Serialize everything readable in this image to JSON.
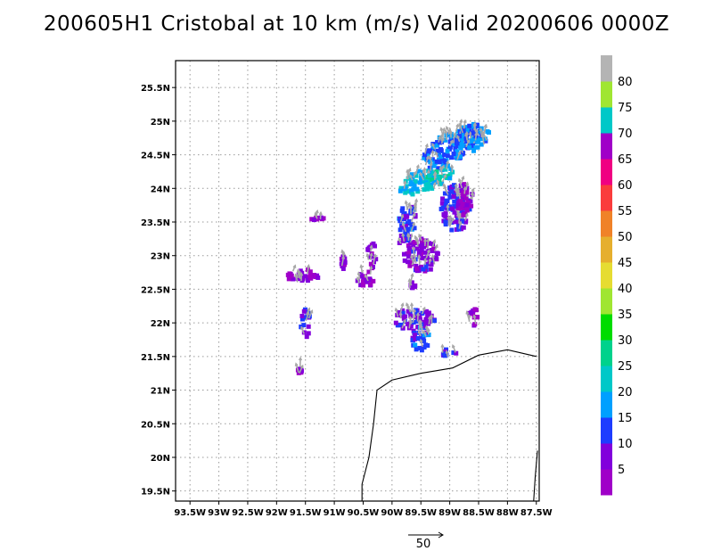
{
  "title": "200605H1 Cristobal at 10 km (m/s) Valid 20200606 0000Z",
  "chart_data": {
    "type": "heatmap",
    "title": "200605H1 Cristobal at 10 km (m/s) Valid 20200606 0000Z",
    "units": "m/s",
    "xlim": [
      -93.75,
      -87.45
    ],
    "ylim": [
      19.35,
      25.9
    ],
    "x_ticks": [
      -93.5,
      -93,
      -92.5,
      -92,
      -91.5,
      -91,
      -90.5,
      -90,
      -89.5,
      -89,
      -88.5,
      -88,
      -87.5
    ],
    "x_tick_labels": [
      "93.5W",
      "93W",
      "92.5W",
      "92W",
      "91.5W",
      "91W",
      "90.5W",
      "90W",
      "89.5W",
      "89W",
      "88.5W",
      "88W",
      "87.5W"
    ],
    "y_ticks": [
      19.5,
      20,
      20.5,
      21,
      21.5,
      22,
      22.5,
      23,
      23.5,
      24,
      24.5,
      25,
      25.5
    ],
    "y_tick_labels": [
      "19.5N",
      "20N",
      "20.5N",
      "21N",
      "21.5N",
      "22N",
      "22.5N",
      "23N",
      "23.5N",
      "24N",
      "24.5N",
      "25N",
      "25.5N"
    ],
    "grid": true,
    "colorbar": {
      "labels": [
        "5",
        "10",
        "15",
        "20",
        "25",
        "30",
        "35",
        "40",
        "45",
        "50",
        "55",
        "60",
        "65",
        "70",
        "75",
        "80"
      ],
      "colors": [
        "#a000c8",
        "#8200dc",
        "#1e3cff",
        "#00a0ff",
        "#00c8c8",
        "#00d28c",
        "#00dc00",
        "#a0e632",
        "#e6dc32",
        "#e6af2d",
        "#f08228",
        "#fa3c3c",
        "#f00082",
        "#a000c8",
        "#00c8c8",
        "#a0e632",
        "#b4b4b4"
      ]
    },
    "vector_key": {
      "value": "50"
    },
    "wind_regions": [
      {
        "lon": -89.0,
        "lat": 24.6,
        "rx": 0.55,
        "ry": 0.22,
        "speed": 14,
        "rot": -35
      },
      {
        "lon": -88.6,
        "lat": 24.75,
        "rx": 0.3,
        "ry": 0.2,
        "speed": 16,
        "rot": -30
      },
      {
        "lon": -89.55,
        "lat": 24.1,
        "rx": 0.35,
        "ry": 0.15,
        "speed": 20,
        "rot": -30
      },
      {
        "lon": -89.2,
        "lat": 24.15,
        "rx": 0.3,
        "ry": 0.12,
        "speed": 22,
        "rot": -30
      },
      {
        "lon": -88.9,
        "lat": 23.7,
        "rx": 0.25,
        "ry": 0.35,
        "speed": 10,
        "rot": 0
      },
      {
        "lon": -88.75,
        "lat": 23.85,
        "rx": 0.15,
        "ry": 0.25,
        "speed": 5,
        "rot": 0
      },
      {
        "lon": -89.7,
        "lat": 23.55,
        "rx": 0.18,
        "ry": 0.2,
        "speed": 12,
        "rot": 0
      },
      {
        "lon": -89.5,
        "lat": 23.0,
        "rx": 0.3,
        "ry": 0.25,
        "speed": 7,
        "rot": 0
      },
      {
        "lon": -89.8,
        "lat": 23.3,
        "rx": 0.12,
        "ry": 0.15,
        "speed": 10,
        "rot": 0
      },
      {
        "lon": -90.35,
        "lat": 23.0,
        "rx": 0.08,
        "ry": 0.2,
        "speed": 6,
        "rot": 0
      },
      {
        "lon": -90.45,
        "lat": 22.65,
        "rx": 0.15,
        "ry": 0.12,
        "speed": 6,
        "rot": 0
      },
      {
        "lon": -91.55,
        "lat": 22.7,
        "rx": 0.3,
        "ry": 0.1,
        "speed": 6,
        "rot": 0
      },
      {
        "lon": -91.5,
        "lat": 22.0,
        "rx": 0.08,
        "ry": 0.22,
        "speed": 10,
        "rot": 0
      },
      {
        "lon": -89.6,
        "lat": 22.05,
        "rx": 0.35,
        "ry": 0.18,
        "speed": 9,
        "rot": 0
      },
      {
        "lon": -89.5,
        "lat": 21.75,
        "rx": 0.15,
        "ry": 0.2,
        "speed": 12,
        "rot": 0
      },
      {
        "lon": -89.0,
        "lat": 21.55,
        "rx": 0.15,
        "ry": 0.06,
        "speed": 11,
        "rot": 0
      },
      {
        "lon": -88.6,
        "lat": 22.1,
        "rx": 0.08,
        "ry": 0.15,
        "speed": 6,
        "rot": 0
      },
      {
        "lon": -89.65,
        "lat": 22.55,
        "rx": 0.06,
        "ry": 0.06,
        "speed": 6,
        "rot": 0
      },
      {
        "lon": -91.6,
        "lat": 21.3,
        "rx": 0.04,
        "ry": 0.05,
        "speed": 6,
        "rot": 0
      },
      {
        "lon": -91.3,
        "lat": 23.55,
        "rx": 0.12,
        "ry": 0.02,
        "speed": 6,
        "rot": 0
      },
      {
        "lon": -90.85,
        "lat": 22.9,
        "rx": 0.04,
        "ry": 0.1,
        "speed": 6,
        "rot": 0
      }
    ],
    "coastline": [
      [
        -90.52,
        19.3
      ],
      [
        -90.52,
        19.6
      ],
      [
        -90.4,
        20.0
      ],
      [
        -90.32,
        20.5
      ],
      [
        -90.26,
        21.0
      ],
      [
        -90.0,
        21.15
      ],
      [
        -89.5,
        21.25
      ],
      [
        -88.95,
        21.33
      ],
      [
        -88.5,
        21.52
      ],
      [
        -88.0,
        21.6
      ],
      [
        -87.5,
        21.5
      ]
    ],
    "coastline2": [
      [
        -87.55,
        19.3
      ],
      [
        -87.52,
        19.7
      ],
      [
        -87.48,
        20.1
      ]
    ]
  }
}
